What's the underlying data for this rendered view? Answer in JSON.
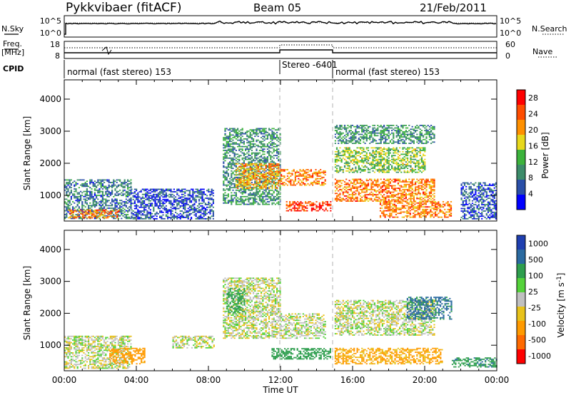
{
  "header": {
    "title": "Pykkvibaer (fitACF)",
    "beam": "Beam 05",
    "date": "21/Feb/2011"
  },
  "top_panels": {
    "nsky_label": "N.Sky",
    "nsky_ticks": [
      "10^5",
      "10^0"
    ],
    "nsearch_label": "N.Search",
    "nsearch_ticks": [
      "10^5",
      "10^0"
    ],
    "freq_label_1": "Freq.",
    "freq_label_2": "[MHz]",
    "freq_ticks": [
      "18",
      "8"
    ],
    "nave_label": "Nave",
    "nave_ticks": [
      "60",
      "0"
    ],
    "cpid_label": "CPID",
    "cpid_segments": [
      {
        "text": "normal (fast stereo) 153",
        "start_hour": 0,
        "end_hour": 12.0
      },
      {
        "text": "Stereo -6401",
        "start_hour": 12.0,
        "end_hour": 15.0
      },
      {
        "text": "normal (fast stereo) 153",
        "start_hour": 15.0,
        "end_hour": 24.0
      }
    ]
  },
  "x_axis": {
    "label": "Time UT",
    "ticks": [
      "00:00",
      "04:00",
      "08:00",
      "12:00",
      "16:00",
      "20:00",
      "00:00"
    ],
    "range_hours": [
      0,
      24
    ]
  },
  "colors": {
    "power": [
      "#0000ff",
      "#2a4fa8",
      "#3c8c6a",
      "#3cb33c",
      "#e8d81c",
      "#ff9000",
      "#ff4d00",
      "#ff0000"
    ],
    "velocity": [
      "#ff0000",
      "#ff6a00",
      "#ff9a00",
      "#e8c21a",
      "#c0c0c0",
      "#54d23a",
      "#2e9e4e",
      "#2a6aa0",
      "#1f3fb0"
    ]
  },
  "chart_data": [
    {
      "type": "heatmap",
      "name_key": "power",
      "xlabel": "",
      "ylabel": "Slant Range [km]",
      "yticks": [
        "1000",
        "2000",
        "3000",
        "4000"
      ],
      "ylim": [
        200,
        4600
      ],
      "colorbar_label": "Power [dB]",
      "colorbar_ticks": [
        "4",
        "8",
        "12",
        "16",
        "20",
        "24",
        "28"
      ],
      "zlim": [
        0,
        30
      ],
      "features": [
        {
          "t0": 0.0,
          "t1": 3.7,
          "r0": 260,
          "r1": 1500,
          "z": 8
        },
        {
          "t0": 0.2,
          "t1": 3.0,
          "r0": 280,
          "r1": 550,
          "z": 22
        },
        {
          "t0": 3.7,
          "t1": 8.3,
          "r0": 250,
          "r1": 1200,
          "z": 5
        },
        {
          "t0": 8.8,
          "t1": 12.0,
          "r0": 700,
          "r1": 3100,
          "z": 10
        },
        {
          "t0": 9.5,
          "t1": 12.0,
          "r0": 1200,
          "r1": 2000,
          "z": 20
        },
        {
          "t0": 12.0,
          "t1": 14.5,
          "r0": 1300,
          "r1": 1800,
          "z": 22
        },
        {
          "t0": 12.3,
          "t1": 14.8,
          "r0": 500,
          "r1": 800,
          "z": 26
        },
        {
          "t0": 15.0,
          "t1": 20.5,
          "r0": 800,
          "r1": 1500,
          "z": 22
        },
        {
          "t0": 15.0,
          "t1": 20.0,
          "r0": 1700,
          "r1": 2500,
          "z": 14
        },
        {
          "t0": 17.5,
          "t1": 21.5,
          "r0": 300,
          "r1": 800,
          "z": 22
        },
        {
          "t0": 15.0,
          "t1": 20.5,
          "r0": 2600,
          "r1": 3200,
          "z": 10
        },
        {
          "t0": 22.0,
          "t1": 24.0,
          "r0": 250,
          "r1": 1400,
          "z": 6
        }
      ]
    },
    {
      "type": "heatmap",
      "name_key": "velocity",
      "xlabel": "Time UT",
      "ylabel": "Slant Range [km]",
      "yticks": [
        "1000",
        "2000",
        "3000",
        "4000"
      ],
      "ylim": [
        200,
        4600
      ],
      "colorbar_label": "Velocity [m s^-1]",
      "colorbar_ticks": [
        "1000",
        "500",
        "100",
        "25",
        "-25",
        "-100",
        "-500",
        "-1000"
      ],
      "features": [
        {
          "t0": 0.0,
          "t1": 3.7,
          "r0": 260,
          "r1": 1300,
          "v": 0
        },
        {
          "t0": 2.5,
          "t1": 4.5,
          "r0": 400,
          "r1": 900,
          "v": -150
        },
        {
          "t0": 6.0,
          "t1": 8.3,
          "r0": 900,
          "r1": 1300,
          "v": 0
        },
        {
          "t0": 8.8,
          "t1": 12.0,
          "r0": 1200,
          "r1": 3100,
          "v": 0
        },
        {
          "t0": 9.0,
          "t1": 10.0,
          "r0": 2000,
          "r1": 2800,
          "v": 150
        },
        {
          "t0": 12.0,
          "t1": 14.5,
          "r0": 1200,
          "r1": 2000,
          "v": 0
        },
        {
          "t0": 11.5,
          "t1": 14.8,
          "r0": 550,
          "r1": 900,
          "v": 300
        },
        {
          "t0": 15.0,
          "t1": 20.5,
          "r0": 1300,
          "r1": 2400,
          "v": 0
        },
        {
          "t0": 15.0,
          "t1": 21.0,
          "r0": 400,
          "r1": 900,
          "v": -120
        },
        {
          "t0": 19.0,
          "t1": 21.5,
          "r0": 1800,
          "r1": 2500,
          "v": 600
        },
        {
          "t0": 21.5,
          "t1": 24.0,
          "r0": 300,
          "r1": 600,
          "v": 400
        }
      ]
    }
  ]
}
